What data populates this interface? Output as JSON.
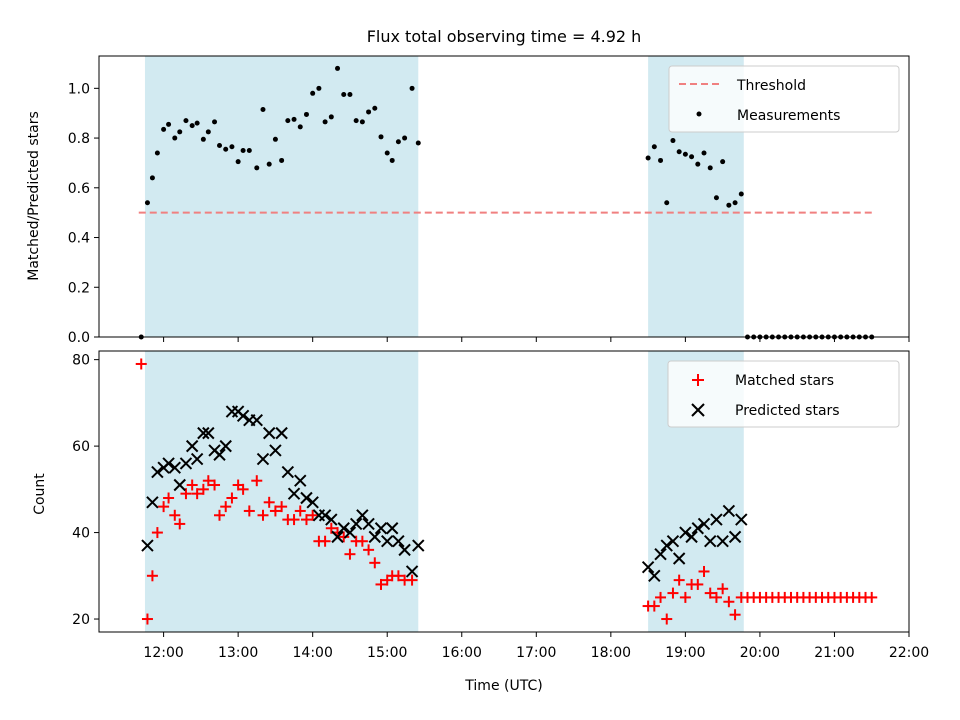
{
  "title": "Flux total observing time = 4.92 h",
  "chart_data": [
    {
      "type": "scatter",
      "panel": "top",
      "ylabel": "Matched/Predicted stars",
      "xlabel": "",
      "ylim": [
        0,
        1.13
      ],
      "yticks": [
        "0.0",
        "0.2",
        "0.4",
        "0.6",
        "0.8",
        "1.0"
      ],
      "ytick_values": [
        0,
        0.2,
        0.4,
        0.6,
        0.8,
        1.0
      ],
      "legend": {
        "placement": "top-right",
        "entries": [
          "Threshold",
          "Measurements"
        ]
      },
      "threshold": {
        "name": "Threshold",
        "y": 0.5,
        "x_start": "11:40",
        "x_end": "21:32",
        "color": "#f08080",
        "style": "dashed"
      },
      "shaded_intervals": [
        [
          "11:45",
          "15:25"
        ],
        [
          "18:30",
          "19:47"
        ]
      ],
      "series": [
        {
          "name": "Measurements",
          "color": "#000000",
          "points": [
            [
              "11:42",
              0.0
            ],
            [
              "11:47",
              0.54
            ],
            [
              "11:51",
              0.64
            ],
            [
              "11:55",
              0.74
            ],
            [
              "12:00",
              0.835
            ],
            [
              "12:04",
              0.855
            ],
            [
              "12:09",
              0.8
            ],
            [
              "12:13",
              0.825
            ],
            [
              "12:18",
              0.87
            ],
            [
              "12:23",
              0.85
            ],
            [
              "12:27",
              0.86
            ],
            [
              "12:32",
              0.795
            ],
            [
              "12:36",
              0.825
            ],
            [
              "12:41",
              0.865
            ],
            [
              "12:45",
              0.77
            ],
            [
              "12:50",
              0.755
            ],
            [
              "12:55",
              0.765
            ],
            [
              "13:00",
              0.705
            ],
            [
              "13:04",
              0.75
            ],
            [
              "13:09",
              0.75
            ],
            [
              "13:15",
              0.68
            ],
            [
              "13:20",
              0.915
            ],
            [
              "13:25",
              0.695
            ],
            [
              "13:30",
              0.795
            ],
            [
              "13:35",
              0.71
            ],
            [
              "13:40",
              0.87
            ],
            [
              "13:45",
              0.875
            ],
            [
              "13:50",
              0.845
            ],
            [
              "13:55",
              0.895
            ],
            [
              "14:00",
              0.98
            ],
            [
              "14:05",
              1.0
            ],
            [
              "14:10",
              0.865
            ],
            [
              "14:15",
              0.885
            ],
            [
              "14:20",
              1.08
            ],
            [
              "14:25",
              0.975
            ],
            [
              "14:30",
              0.975
            ],
            [
              "14:35",
              0.87
            ],
            [
              "14:40",
              0.865
            ],
            [
              "14:45",
              0.905
            ],
            [
              "14:50",
              0.92
            ],
            [
              "14:55",
              0.805
            ],
            [
              "15:00",
              0.74
            ],
            [
              "15:04",
              0.71
            ],
            [
              "15:09",
              0.785
            ],
            [
              "15:14",
              0.8
            ],
            [
              "15:20",
              1.0
            ],
            [
              "15:25",
              0.78
            ],
            [
              "18:30",
              0.72
            ],
            [
              "18:35",
              0.765
            ],
            [
              "18:40",
              0.71
            ],
            [
              "18:45",
              0.54
            ],
            [
              "18:50",
              0.79
            ],
            [
              "18:55",
              0.745
            ],
            [
              "19:00",
              0.735
            ],
            [
              "19:05",
              0.725
            ],
            [
              "19:10",
              0.695
            ],
            [
              "19:15",
              0.74
            ],
            [
              "19:20",
              0.68
            ],
            [
              "19:25",
              0.56
            ],
            [
              "19:30",
              0.705
            ],
            [
              "19:35",
              0.53
            ],
            [
              "19:40",
              0.54
            ],
            [
              "19:45",
              0.575
            ],
            [
              "19:50",
              0.0
            ],
            [
              "19:55",
              0.0
            ],
            [
              "20:00",
              0.0
            ],
            [
              "20:05",
              0.0
            ],
            [
              "20:10",
              0.0
            ],
            [
              "20:15",
              0.0
            ],
            [
              "20:20",
              0.0
            ],
            [
              "20:25",
              0.0
            ],
            [
              "20:30",
              0.0
            ],
            [
              "20:35",
              0.0
            ],
            [
              "20:40",
              0.0
            ],
            [
              "20:45",
              0.0
            ],
            [
              "20:50",
              0.0
            ],
            [
              "20:55",
              0.0
            ],
            [
              "21:00",
              0.0
            ],
            [
              "21:05",
              0.0
            ],
            [
              "21:10",
              0.0
            ],
            [
              "21:15",
              0.0
            ],
            [
              "21:20",
              0.0
            ],
            [
              "21:25",
              0.0
            ],
            [
              "21:30",
              0.0
            ]
          ]
        }
      ]
    },
    {
      "type": "scatter",
      "panel": "bottom",
      "ylabel": "Count",
      "xlabel": "Time (UTC)",
      "ylim": [
        17,
        82
      ],
      "yticks": [
        "20",
        "40",
        "60",
        "80"
      ],
      "ytick_values": [
        20,
        40,
        60,
        80
      ],
      "xlim": [
        "11:08",
        "22:00"
      ],
      "xticks": [
        "12:00",
        "13:00",
        "14:00",
        "15:00",
        "16:00",
        "17:00",
        "18:00",
        "19:00",
        "20:00",
        "21:00",
        "22:00"
      ],
      "legend": {
        "placement": "top-right",
        "entries": [
          "Matched stars",
          "Predicted stars"
        ]
      },
      "shaded_intervals": [
        [
          "11:45",
          "15:25"
        ],
        [
          "18:30",
          "19:47"
        ]
      ],
      "series": [
        {
          "name": "Matched stars",
          "marker": "+",
          "color": "#ff0000",
          "points": [
            [
              "11:42",
              79
            ],
            [
              "11:47",
              20
            ],
            [
              "11:51",
              30
            ],
            [
              "11:55",
              40
            ],
            [
              "12:00",
              46
            ],
            [
              "12:04",
              48
            ],
            [
              "12:09",
              44
            ],
            [
              "12:13",
              42
            ],
            [
              "12:18",
              49
            ],
            [
              "12:23",
              51
            ],
            [
              "12:27",
              49
            ],
            [
              "12:32",
              50
            ],
            [
              "12:36",
              52
            ],
            [
              "12:41",
              51
            ],
            [
              "12:45",
              44
            ],
            [
              "12:50",
              46
            ],
            [
              "12:55",
              48
            ],
            [
              "13:00",
              51
            ],
            [
              "13:04",
              50
            ],
            [
              "13:09",
              45
            ],
            [
              "13:15",
              52
            ],
            [
              "13:20",
              44
            ],
            [
              "13:25",
              47
            ],
            [
              "13:30",
              45
            ],
            [
              "13:35",
              46
            ],
            [
              "13:40",
              43
            ],
            [
              "13:45",
              43
            ],
            [
              "13:50",
              45
            ],
            [
              "13:55",
              43
            ],
            [
              "14:00",
              44
            ],
            [
              "14:05",
              38
            ],
            [
              "14:10",
              38
            ],
            [
              "14:15",
              41
            ],
            [
              "14:20",
              40
            ],
            [
              "14:25",
              39
            ],
            [
              "14:30",
              35
            ],
            [
              "14:35",
              38
            ],
            [
              "14:40",
              38
            ],
            [
              "14:45",
              36
            ],
            [
              "14:50",
              33
            ],
            [
              "14:55",
              28
            ],
            [
              "15:00",
              29
            ],
            [
              "15:04",
              30
            ],
            [
              "15:09",
              30
            ],
            [
              "15:14",
              29
            ],
            [
              "15:20",
              29
            ],
            [
              "18:30",
              23
            ],
            [
              "18:35",
              23
            ],
            [
              "18:40",
              25
            ],
            [
              "18:45",
              20
            ],
            [
              "18:50",
              26
            ],
            [
              "18:55",
              29
            ],
            [
              "19:00",
              25
            ],
            [
              "19:05",
              28
            ],
            [
              "19:10",
              28
            ],
            [
              "19:15",
              31
            ],
            [
              "19:20",
              26
            ],
            [
              "19:25",
              25
            ],
            [
              "19:30",
              27
            ],
            [
              "19:35",
              24
            ],
            [
              "19:40",
              21
            ],
            [
              "19:45",
              25
            ],
            [
              "19:50",
              25
            ],
            [
              "19:55",
              25
            ],
            [
              "20:00",
              25
            ],
            [
              "20:05",
              25
            ],
            [
              "20:10",
              25
            ],
            [
              "20:15",
              25
            ],
            [
              "20:20",
              25
            ],
            [
              "20:25",
              25
            ],
            [
              "20:30",
              25
            ],
            [
              "20:35",
              25
            ],
            [
              "20:40",
              25
            ],
            [
              "20:45",
              25
            ],
            [
              "20:50",
              25
            ],
            [
              "20:55",
              25
            ],
            [
              "21:00",
              25
            ],
            [
              "21:05",
              25
            ],
            [
              "21:10",
              25
            ],
            [
              "21:15",
              25
            ],
            [
              "21:20",
              25
            ],
            [
              "21:25",
              25
            ],
            [
              "21:30",
              25
            ]
          ]
        },
        {
          "name": "Predicted stars",
          "marker": "x",
          "color": "#000000",
          "points": [
            [
              "11:47",
              37
            ],
            [
              "11:51",
              47
            ],
            [
              "11:55",
              54
            ],
            [
              "12:00",
              55
            ],
            [
              "12:04",
              56
            ],
            [
              "12:09",
              55
            ],
            [
              "12:13",
              51
            ],
            [
              "12:18",
              56
            ],
            [
              "12:23",
              60
            ],
            [
              "12:27",
              57
            ],
            [
              "12:32",
              63
            ],
            [
              "12:36",
              63
            ],
            [
              "12:41",
              59
            ],
            [
              "12:45",
              58
            ],
            [
              "12:50",
              60
            ],
            [
              "12:55",
              68
            ],
            [
              "13:00",
              68
            ],
            [
              "13:04",
              67
            ],
            [
              "13:09",
              66
            ],
            [
              "13:15",
              66
            ],
            [
              "13:20",
              57
            ],
            [
              "13:25",
              63
            ],
            [
              "13:30",
              59
            ],
            [
              "13:35",
              63
            ],
            [
              "13:40",
              54
            ],
            [
              "13:45",
              49
            ],
            [
              "13:50",
              52
            ],
            [
              "13:55",
              48
            ],
            [
              "14:00",
              47
            ],
            [
              "14:05",
              44
            ],
            [
              "14:10",
              44
            ],
            [
              "14:15",
              43
            ],
            [
              "14:20",
              39
            ],
            [
              "14:25",
              41
            ],
            [
              "14:30",
              40
            ],
            [
              "14:35",
              42
            ],
            [
              "14:40",
              44
            ],
            [
              "14:45",
              42
            ],
            [
              "14:50",
              39
            ],
            [
              "14:55",
              41
            ],
            [
              "15:00",
              38
            ],
            [
              "15:04",
              41
            ],
            [
              "15:09",
              38
            ],
            [
              "15:14",
              36
            ],
            [
              "15:20",
              31
            ],
            [
              "15:25",
              37
            ],
            [
              "18:30",
              32
            ],
            [
              "18:35",
              30
            ],
            [
              "18:40",
              35
            ],
            [
              "18:45",
              37
            ],
            [
              "18:50",
              38
            ],
            [
              "18:55",
              34
            ],
            [
              "19:00",
              40
            ],
            [
              "19:05",
              39
            ],
            [
              "19:10",
              41
            ],
            [
              "19:15",
              42
            ],
            [
              "19:20",
              38
            ],
            [
              "19:25",
              43
            ],
            [
              "19:30",
              38
            ],
            [
              "19:35",
              45
            ],
            [
              "19:40",
              39
            ],
            [
              "19:45",
              43
            ]
          ]
        }
      ]
    }
  ]
}
